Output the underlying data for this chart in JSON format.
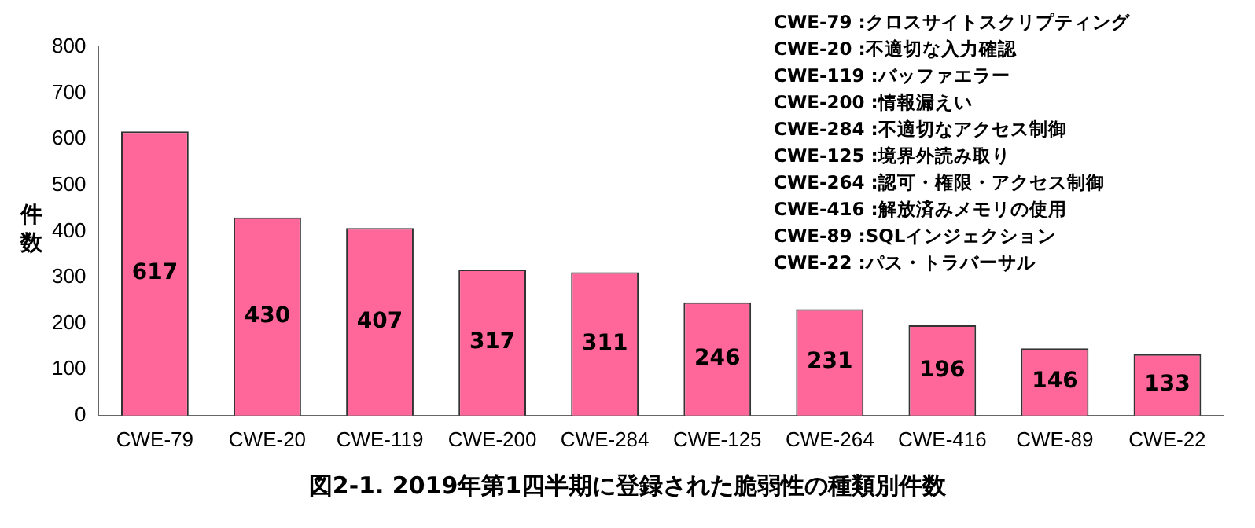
{
  "chart_data": {
    "type": "bar",
    "title": "図2-1. 2019年第1四半期に登録された脆弱性の種類別件数",
    "ylabel": "件数",
    "categories": [
      "CWE-79",
      "CWE-20",
      "CWE-119",
      "CWE-200",
      "CWE-284",
      "CWE-125",
      "CWE-264",
      "CWE-416",
      "CWE-89",
      "CWE-22"
    ],
    "values": [
      617,
      430,
      407,
      317,
      311,
      246,
      231,
      196,
      146,
      133
    ],
    "color": "#ff6699",
    "ylim": [
      0,
      800
    ],
    "yticks": [
      0,
      100,
      200,
      300,
      400,
      500,
      600,
      700,
      800
    ],
    "grid": false,
    "legend": false,
    "data_labels": true,
    "annotations": [
      "CWE-79 :クロスサイトスクリプティング",
      "CWE-20 :不適切な入力確認",
      "CWE-119 :バッファエラー",
      "CWE-200 :情報漏えい",
      "CWE-284 :不適切なアクセス制御",
      "CWE-125 :境界外読み取り",
      "CWE-264 :認可・権限・アクセス制御",
      "CWE-416 :解放済みメモリの使用",
      "CWE-89 :SQLインジェクション",
      "CWE-22 :パス・トラバーサル"
    ]
  }
}
